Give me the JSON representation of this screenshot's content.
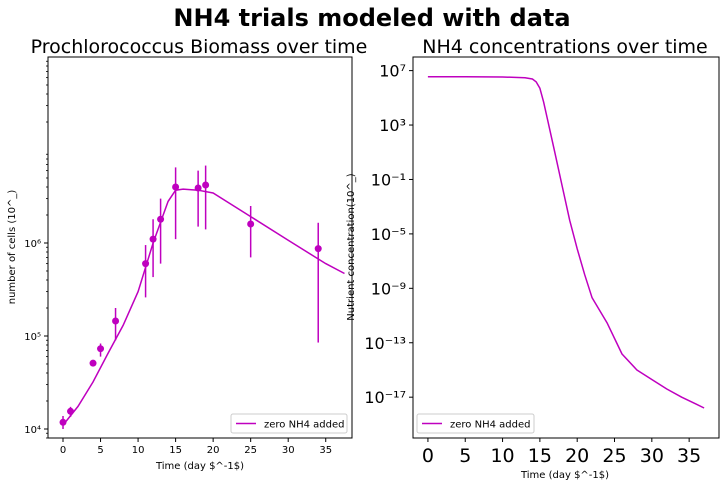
{
  "suptitle": "NH4 trials modeled with data",
  "series_color": "#bf00bf",
  "chart_data": [
    {
      "type": "scatter",
      "title": "Prochlorococcus Biomass over time",
      "xlabel": "Time (day $^-1$)",
      "ylabel": "number of cells (10^_)",
      "yscale": "log",
      "xlim": [
        -2,
        38.5
      ],
      "ylim": [
        8000,
        100000000
      ],
      "xticks": [
        0,
        5,
        10,
        15,
        20,
        25,
        30,
        35
      ],
      "xtick_labels": [
        "0",
        "5",
        "10",
        "15",
        "20",
        "25",
        "30",
        "35"
      ],
      "yticks": [
        10000,
        100000,
        1000000
      ],
      "ytick_labels": [
        "10⁴",
        "10⁵",
        "10⁶"
      ],
      "legend": {
        "label": "zero NH4 added",
        "position": "lower right"
      },
      "model_line": {
        "x": [
          0,
          2,
          4,
          6,
          8,
          10,
          12,
          14,
          15,
          16,
          18,
          20,
          25,
          30,
          35,
          37.5
        ],
        "y": [
          11000,
          17500,
          32000,
          65000,
          130000,
          300000,
          1000000,
          2800000,
          3700000,
          3800000,
          3700000,
          3450000,
          1920000,
          1070000,
          600000,
          470000
        ]
      },
      "data_points": {
        "x": [
          0,
          1,
          4,
          5,
          7,
          11,
          12,
          13,
          15,
          18,
          19,
          25,
          34
        ],
        "y": [
          11800,
          15500,
          51000,
          73000,
          145000,
          600000,
          1100000,
          1800000,
          4000000,
          3900000,
          4200000,
          1600000,
          870000
        ],
        "err_low": [
          10000,
          13500,
          48000,
          60000,
          90000,
          260000,
          430000,
          600000,
          1100000,
          1500000,
          1400000,
          700000,
          85000
        ],
        "err_high": [
          13800,
          17300,
          55000,
          83000,
          200000,
          950000,
          1800000,
          3000000,
          6500000,
          6000000,
          6800000,
          2500000,
          1650000
        ]
      }
    },
    {
      "type": "line",
      "title": "NH4 concentrations over time",
      "xlabel": "Time (day $^-1$)",
      "ylabel": "Nutrient concentration(10^_)",
      "yscale": "log",
      "xlim": [
        -2,
        39
      ],
      "ylim": [
        1e-20,
        100000000.0
      ],
      "xticks": [
        0,
        5,
        10,
        15,
        20,
        25,
        30,
        35
      ],
      "xtick_labels": [
        "0",
        "5",
        "10",
        "15",
        "20",
        "25",
        "30",
        "35"
      ],
      "yticks": [
        1e-17,
        1e-13,
        1e-09,
        1e-05,
        0.1,
        1000,
        10000000
      ],
      "ytick_labels": [
        "10⁻¹⁷",
        "10⁻¹³",
        "10⁻⁹",
        "10⁻⁵",
        "10⁻¹",
        "10³",
        "10⁷"
      ],
      "legend": {
        "label": "zero NH4 added",
        "position": "lower left"
      },
      "line": {
        "x": [
          0,
          5,
          10,
          13,
          14,
          14.5,
          15,
          15.5,
          16,
          17,
          18,
          19,
          20,
          21,
          22,
          24,
          26,
          28,
          30,
          32,
          34,
          36,
          37
        ],
        "y": [
          3500000.0,
          3500000.0,
          3400000.0,
          3000000.0,
          2400000.0,
          1500000.0,
          500000.0,
          50000.0,
          3000.0,
          10.0,
          0.03,
          0.0001,
          8e-07,
          1e-08,
          2e-10,
          3e-12,
          1.5e-14,
          1e-15,
          2e-16,
          4e-17,
          1e-17,
          3e-18,
          1.6e-18
        ]
      }
    }
  ]
}
